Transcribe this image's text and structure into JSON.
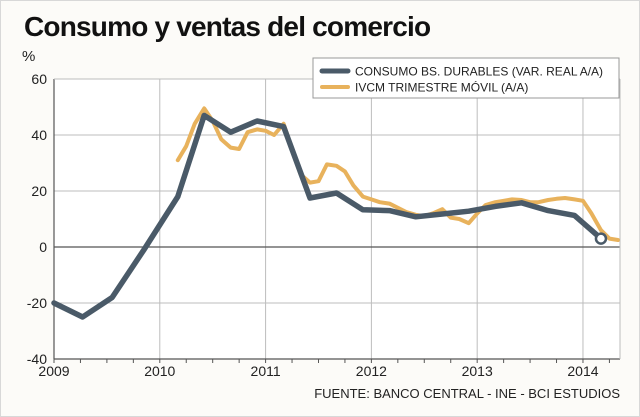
{
  "title": "Consumo y ventas del comercio",
  "unit": "%",
  "source": "FUENTE: BANCO CENTRAL - INE - BCI ESTUDIOS",
  "chart_data": {
    "type": "line",
    "title": "Consumo y ventas del comercio",
    "ylabel": "%",
    "xlim": [
      2009,
      2014.35
    ],
    "ylim": [
      -40,
      60
    ],
    "yticks": [
      60,
      40,
      20,
      0,
      -20,
      -40
    ],
    "xticks": [
      2009,
      2010,
      2011,
      2012,
      2013,
      2014
    ],
    "grid": true,
    "legend": "top-right",
    "series": [
      {
        "name": "CONSUMO BS. DURABLES (VAR. REAL A/A)",
        "color": "#4a5a68",
        "points": [
          [
            2009.0,
            -20
          ],
          [
            2009.27,
            -25
          ],
          [
            2009.55,
            -18
          ],
          [
            2009.85,
            -1
          ],
          [
            2010.17,
            18
          ],
          [
            2010.42,
            47
          ],
          [
            2010.67,
            41
          ],
          [
            2010.92,
            45
          ],
          [
            2011.17,
            43
          ],
          [
            2011.42,
            17.5
          ],
          [
            2011.67,
            19.3
          ],
          [
            2011.92,
            13.3
          ],
          [
            2012.17,
            13
          ],
          [
            2012.42,
            10.8
          ],
          [
            2012.67,
            11.8
          ],
          [
            2012.92,
            12.8
          ],
          [
            2013.17,
            14.5
          ],
          [
            2013.42,
            15.8
          ],
          [
            2013.67,
            13
          ],
          [
            2013.92,
            11.3
          ],
          [
            2014.17,
            3
          ]
        ]
      },
      {
        "name": "IVCM TRIMESTRE MÓVIL (A/A)",
        "color": "#e8b25c",
        "points": [
          [
            2010.17,
            31
          ],
          [
            2010.25,
            36
          ],
          [
            2010.33,
            44
          ],
          [
            2010.42,
            49.5
          ],
          [
            2010.5,
            45
          ],
          [
            2010.58,
            38.5
          ],
          [
            2010.67,
            35.5
          ],
          [
            2010.75,
            35
          ],
          [
            2010.83,
            41
          ],
          [
            2010.92,
            42
          ],
          [
            2011.0,
            41.5
          ],
          [
            2011.08,
            40
          ],
          [
            2011.17,
            44
          ],
          [
            2011.25,
            35
          ],
          [
            2011.33,
            26
          ],
          [
            2011.42,
            23
          ],
          [
            2011.5,
            23.5
          ],
          [
            2011.58,
            29.5
          ],
          [
            2011.67,
            29
          ],
          [
            2011.75,
            27
          ],
          [
            2011.83,
            22
          ],
          [
            2011.92,
            18
          ],
          [
            2012.0,
            17
          ],
          [
            2012.08,
            16
          ],
          [
            2012.17,
            15.5
          ],
          [
            2012.25,
            14
          ],
          [
            2012.33,
            12.5
          ],
          [
            2012.42,
            11.5
          ],
          [
            2012.5,
            11
          ],
          [
            2012.58,
            12
          ],
          [
            2012.67,
            13.5
          ],
          [
            2012.75,
            10.5
          ],
          [
            2012.83,
            10
          ],
          [
            2012.92,
            8.5
          ],
          [
            2013.0,
            12
          ],
          [
            2013.08,
            15
          ],
          [
            2013.17,
            16
          ],
          [
            2013.25,
            16.5
          ],
          [
            2013.33,
            17
          ],
          [
            2013.42,
            16.8
          ],
          [
            2013.5,
            16
          ],
          [
            2013.58,
            16
          ],
          [
            2013.67,
            16.8
          ],
          [
            2013.75,
            17.2
          ],
          [
            2013.83,
            17.5
          ],
          [
            2013.92,
            17
          ],
          [
            2014.0,
            16.5
          ],
          [
            2014.08,
            12
          ],
          [
            2014.17,
            6
          ],
          [
            2014.25,
            3
          ],
          [
            2014.33,
            2.5
          ]
        ],
        "end_marker_at": [
          2014.17,
          3
        ]
      }
    ]
  }
}
